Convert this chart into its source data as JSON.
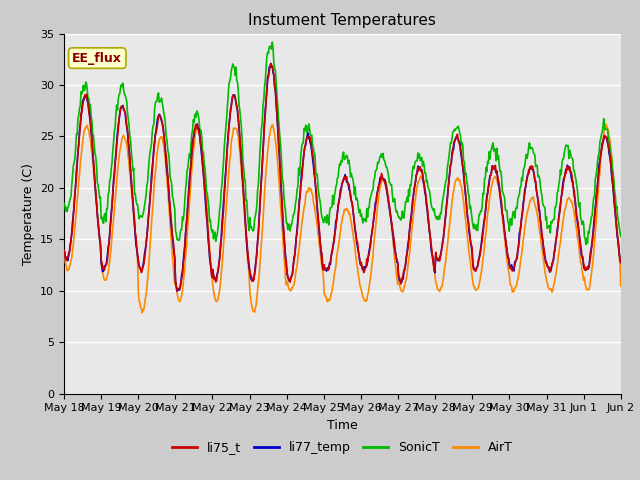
{
  "title": "Instument Temperatures",
  "xlabel": "Time",
  "ylabel": "Temperature (C)",
  "ylim": [
    0,
    35
  ],
  "yticks": [
    0,
    5,
    10,
    15,
    20,
    25,
    30,
    35
  ],
  "annotation_text": "EE_flux",
  "annotation_color": "#8B0000",
  "annotation_bg": "#FFFFCC",
  "fig_bg": "#CCCCCC",
  "plot_bg": "#E8E8E8",
  "grid_color": "#FFFFFF",
  "colors": {
    "li75_t": "#CC0000",
    "li77_temp": "#0000CC",
    "SonicT": "#00BB00",
    "AirT": "#FF8800"
  },
  "linewidth": 1.2,
  "x_ticks_labels": [
    "May 18",
    "May 19",
    "May 20",
    "May 21",
    "May 22",
    "May 23",
    "May 24",
    "May 25",
    "May 26",
    "May 27",
    "May 28",
    "May 29",
    "May 30",
    "May 31",
    "Jun 1",
    "Jun 2"
  ],
  "legend_labels": [
    "li75_t",
    "li77_temp",
    "SonicT",
    "AirT"
  ]
}
